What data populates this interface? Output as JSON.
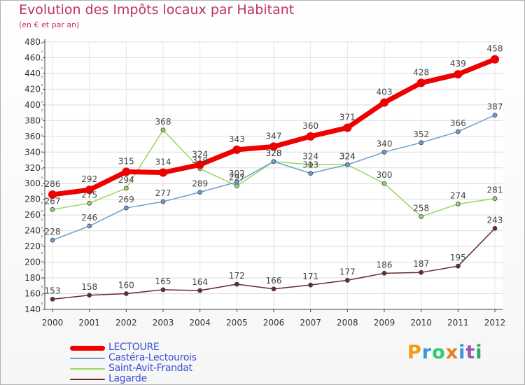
{
  "header": {
    "title": "Evolution des Impôts locaux par Habitant",
    "subtitle": "(en € et par an)"
  },
  "logo": {
    "text": "Proxiti",
    "letters": [
      "P",
      "r",
      "o",
      "x",
      "i",
      "t",
      "i"
    ],
    "colors": [
      "#f39c12",
      "#3498db",
      "#2ecc71",
      "#e67e22",
      "#3498db",
      "#9b59b6",
      "#27ae60"
    ]
  },
  "chart_data": {
    "type": "line",
    "title": "Evolution des Impôts locaux par Habitant",
    "subtitle": "(en € et par an)",
    "xlabel": "",
    "ylabel": "",
    "x": [
      "2000",
      "2001",
      "2002",
      "2003",
      "2004",
      "2005",
      "2006",
      "2007",
      "2008",
      "2009",
      "2010",
      "2011",
      "2012"
    ],
    "ylim": [
      140,
      480
    ],
    "yticks": [
      140,
      160,
      180,
      200,
      220,
      240,
      260,
      280,
      300,
      320,
      340,
      360,
      380,
      400,
      420,
      440,
      460,
      480
    ],
    "grid": true,
    "legend_position": "bottom-left",
    "series": [
      {
        "name": "LECTOURE",
        "color": "#ee0000",
        "width": 7,
        "marker": 6,
        "values": [
          286,
          292,
          315,
          314,
          324,
          343,
          347,
          360,
          371,
          403,
          428,
          439,
          458
        ]
      },
      {
        "name": "Castéra-Lectourois",
        "color": "#6d9ecf",
        "width": 1.5,
        "marker": 3,
        "values": [
          228,
          246,
          269,
          277,
          289,
          302,
          328,
          313,
          324,
          340,
          352,
          366,
          387
        ]
      },
      {
        "name": "Saint-Avit-Frandat",
        "color": "#99d563",
        "width": 1.5,
        "marker": 3,
        "values": [
          267,
          275,
          294,
          368,
          319,
          297,
          328,
          324,
          324,
          300,
          258,
          274,
          281
        ]
      },
      {
        "name": "Lagarde",
        "color": "#6b2a2a",
        "width": 1.5,
        "marker": 3,
        "values": [
          153,
          158,
          160,
          165,
          164,
          172,
          166,
          171,
          177,
          186,
          187,
          195,
          243
        ]
      }
    ]
  }
}
